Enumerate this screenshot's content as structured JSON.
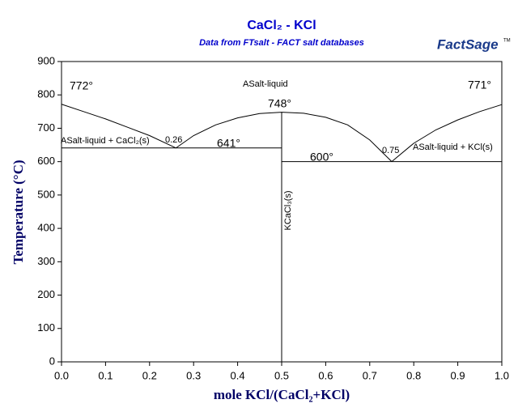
{
  "chart_data": {
    "type": "line",
    "title": "CaCl₂ - KCl",
    "subtitle": "Data from FTsalt - FACT salt databases",
    "logo": "FactSage",
    "logo_mark": "TM",
    "x_label": "mole KCl/(CaCl₂+KCl)",
    "y_label": "Temperature (°C)",
    "xlim": [
      0,
      1
    ],
    "xticks": [
      {
        "value": 0,
        "label": "0.0"
      },
      0.1,
      0.2,
      0.3,
      0.4,
      0.5,
      0.6,
      0.7,
      0.8,
      0.9,
      {
        "value": 1,
        "label": "1.0"
      }
    ],
    "ylim": [
      0,
      900
    ],
    "yticks": [
      0,
      100,
      200,
      300,
      400,
      500,
      600,
      700,
      800,
      900
    ],
    "series": [
      {
        "color": "#000000",
        "x": [
          0,
          0.05,
          0.1,
          0.15,
          0.2,
          0.26
        ],
        "values": [
          772,
          750,
          728,
          703,
          678,
          641
        ]
      },
      {
        "color": "#000000",
        "x": [
          0.26,
          0.3,
          0.35,
          0.4,
          0.45,
          0.5,
          0.55,
          0.6,
          0.65,
          0.7,
          0.75
        ],
        "values": [
          641,
          678,
          710,
          731,
          744,
          748,
          745,
          733,
          710,
          665,
          600
        ]
      },
      {
        "color": "#000000",
        "x": [
          0.75,
          0.8,
          0.85,
          0.9,
          0.95,
          1
        ],
        "values": [
          600,
          655,
          695,
          725,
          750,
          771
        ]
      },
      {
        "color": "#000000",
        "x": [
          0,
          0.5
        ],
        "values": [
          641,
          641
        ]
      },
      {
        "color": "#000000",
        "x": [
          0.5,
          1
        ],
        "values": [
          600,
          600
        ]
      },
      {
        "color": "#000000",
        "x": [
          0.5,
          0.5
        ],
        "values": [
          0,
          748
        ]
      }
    ],
    "annotations": [
      "772°",
      "771°",
      "ASalt-liquid",
      "748°",
      "641°",
      "600°",
      "ASalt-liquid + CaCl₂(s)",
      "0.26",
      "0.75",
      "ASalt-liquid + KCl(s)",
      "KCaCl₃(s)"
    ]
  }
}
